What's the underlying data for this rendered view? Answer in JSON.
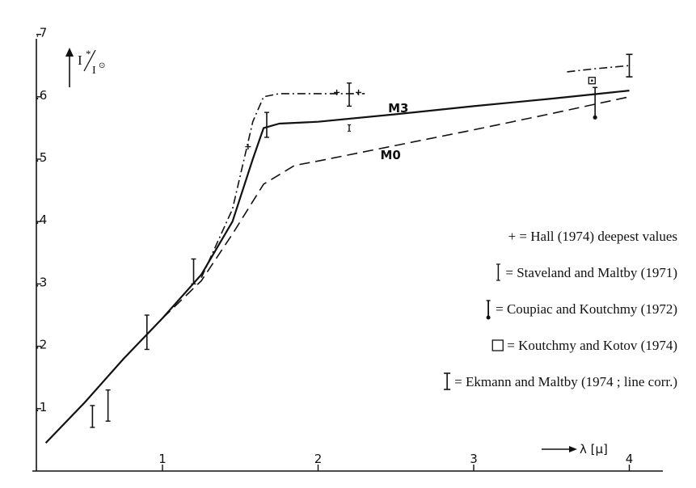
{
  "chart_data": {
    "type": "line",
    "title": "",
    "ylabel": {
      "main": "I",
      "sup": "*",
      "sub": "I",
      "sub_sup": "⊙"
    },
    "xlabel": "λ [μ]",
    "xlim": [
      0.0,
      4.4
    ],
    "ylim": [
      0.0,
      0.7
    ],
    "x_ticks": [
      {
        "value": 1,
        "label": "1"
      },
      {
        "value": 2,
        "label": "2"
      },
      {
        "value": 3,
        "label": "3"
      },
      {
        "value": 4,
        "label": "4"
      }
    ],
    "y_ticks": [
      {
        "value": 0.1,
        "label": ".1"
      },
      {
        "value": 0.2,
        "label": ".2"
      },
      {
        "value": 0.3,
        "label": ".3"
      },
      {
        "value": 0.4,
        "label": ".4"
      },
      {
        "value": 0.5,
        "label": ".5"
      },
      {
        "value": 0.6,
        "label": ".6"
      },
      {
        "value": 0.7,
        "label": ".7"
      }
    ],
    "series": [
      {
        "name": "M3",
        "style": "solid",
        "x": [
          0.25,
          0.5,
          0.75,
          1.0,
          1.25,
          1.45,
          1.58,
          1.65,
          1.75,
          2.0,
          2.5,
          3.0,
          3.5,
          4.0
        ],
        "y": [
          0.045,
          0.11,
          0.18,
          0.245,
          0.315,
          0.4,
          0.5,
          0.55,
          0.557,
          0.56,
          0.572,
          0.585,
          0.597,
          0.61
        ]
      },
      {
        "name": "M0",
        "style": "dashed",
        "x": [
          1.0,
          1.25,
          1.45,
          1.65,
          1.85,
          2.0,
          2.5,
          3.0,
          3.5,
          4.0
        ],
        "y": [
          0.245,
          0.305,
          0.38,
          0.46,
          0.49,
          0.497,
          0.522,
          0.547,
          0.573,
          0.6
        ]
      },
      {
        "name": "",
        "style": "dashdot",
        "x": [
          1.25,
          1.45,
          1.58,
          1.65,
          1.75,
          2.0,
          2.3
        ],
        "y": [
          0.31,
          0.42,
          0.56,
          0.6,
          0.605,
          0.605,
          0.605
        ]
      },
      {
        "name": "",
        "style": "dashdot",
        "x": [
          3.6,
          3.78,
          4.0
        ],
        "y": [
          0.64,
          0.645,
          0.65
        ]
      }
    ],
    "hall_points": [
      {
        "x": 1.55,
        "y": 0.52
      },
      {
        "x": 2.12,
        "y": 0.607
      },
      {
        "x": 2.26,
        "y": 0.607
      }
    ],
    "staveland_bars": [
      {
        "x": 0.55,
        "ylow": 0.07,
        "yhigh": 0.105
      },
      {
        "x": 0.65,
        "ylow": 0.08,
        "yhigh": 0.13
      },
      {
        "x": 0.9,
        "ylow": 0.195,
        "yhigh": 0.25
      },
      {
        "x": 1.2,
        "ylow": 0.3,
        "yhigh": 0.34
      },
      {
        "x": 1.67,
        "ylow": 0.535,
        "yhigh": 0.575
      },
      {
        "x": 2.2,
        "ylow": 0.585,
        "yhigh": 0.622
      }
    ],
    "coupiac_bars": [
      {
        "x": 3.78,
        "ylow": 0.567,
        "yhigh": 0.615
      }
    ],
    "koutchmy_points": [
      {
        "x": 3.76,
        "y": 0.626
      }
    ],
    "ekmann_bars": [
      {
        "x": 4.0,
        "ylow": 0.632,
        "yhigh": 0.668
      }
    ],
    "small_marks": [
      {
        "x": 2.2,
        "y": 0.55
      }
    ],
    "curve_labels": [
      {
        "text": "M3",
        "x": 2.45,
        "y": 0.575
      },
      {
        "text": "M0",
        "x": 2.4,
        "y": 0.5
      }
    ],
    "legend": [
      {
        "symbol": "plus",
        "text": "+ = Hall (1974) deepest values"
      },
      {
        "symbol": "staveland",
        "text": "= Staveland and Maltby (1971)"
      },
      {
        "symbol": "coupiac",
        "text": "= Coupiac and Koutchmy (1972)"
      },
      {
        "symbol": "square",
        "text": "= Koutchmy and Kotov (1974)"
      },
      {
        "symbol": "ekmann",
        "text": "= Ekmann and Maltby (1974 ; line corr.)"
      }
    ],
    "legend_placement": "right",
    "grid": false
  }
}
